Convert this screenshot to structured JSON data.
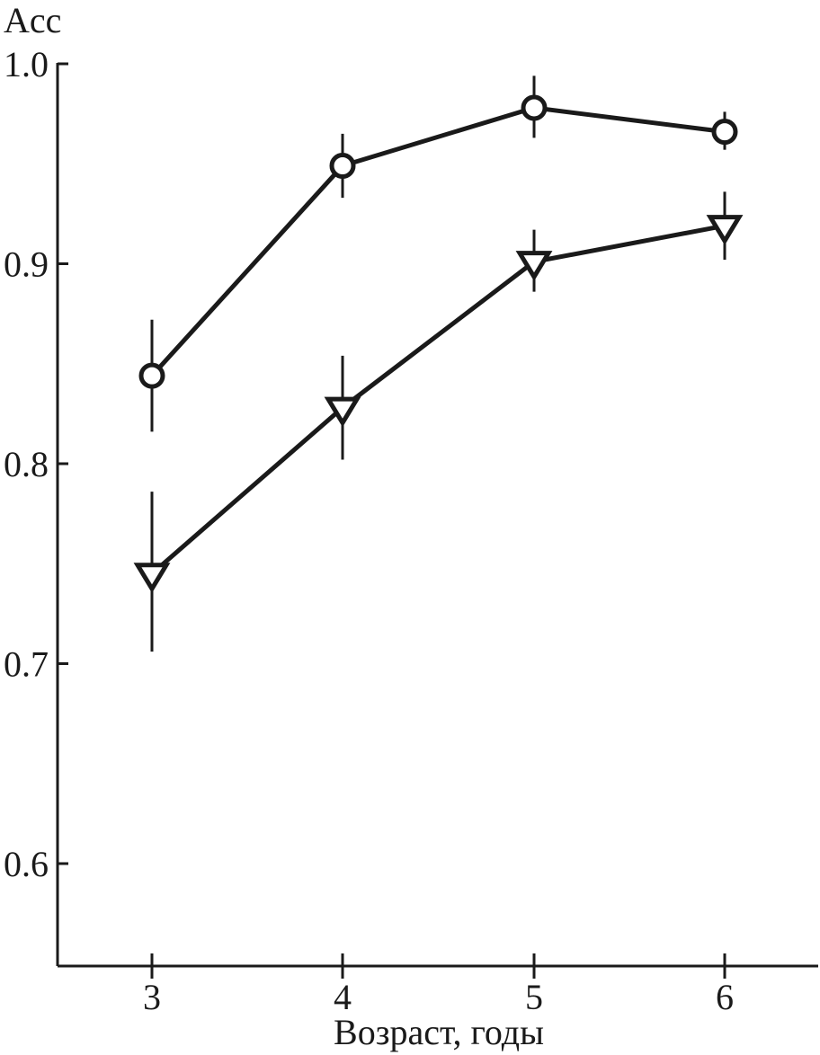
{
  "chart_data": {
    "type": "line",
    "title": "",
    "xlabel": "Возраст, годы",
    "ylabel": "Acc",
    "x": [
      3,
      4,
      5,
      6
    ],
    "x_ticks": [
      "3",
      "4",
      "5",
      "6"
    ],
    "y_ticks": [
      "0.6",
      "0.7",
      "0.8",
      "0.9",
      "1.0"
    ],
    "ylim": [
      0.55,
      1.0
    ],
    "grid": false,
    "series": [
      {
        "marker": "circle",
        "values": [
          0.844,
          0.949,
          0.978,
          0.966
        ],
        "err_low": [
          0.816,
          0.933,
          0.963,
          0.957
        ],
        "err_high": [
          0.872,
          0.965,
          0.994,
          0.976
        ]
      },
      {
        "marker": "triangle-down",
        "values": [
          0.745,
          0.828,
          0.901,
          0.919
        ],
        "err_low": [
          0.706,
          0.802,
          0.886,
          0.902
        ],
        "err_high": [
          0.786,
          0.854,
          0.917,
          0.936
        ]
      }
    ]
  }
}
